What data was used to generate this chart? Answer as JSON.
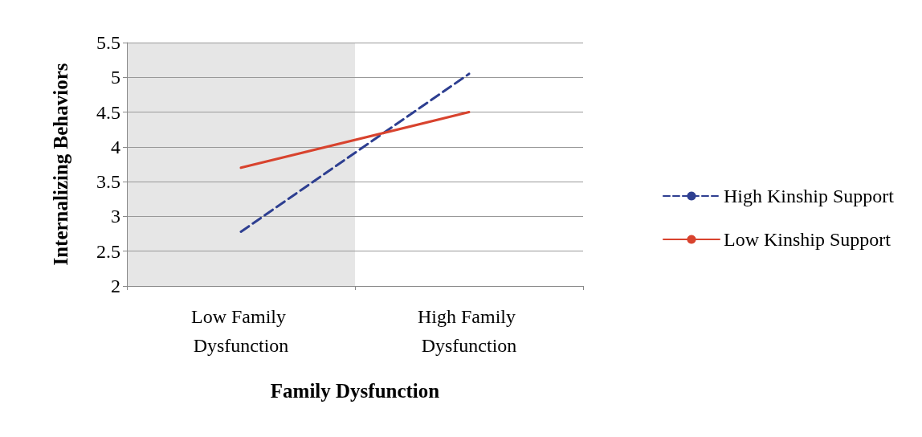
{
  "chart_data": {
    "type": "line",
    "xlabel": "Family Dysfunction",
    "ylabel": "Internalizing Behaviors",
    "categories": [
      "Low Family Dysfunction",
      "High Family Dysfunction"
    ],
    "series": [
      {
        "name": "High Kinship Support",
        "color": "#2e3f91",
        "values": [
          2.78,
          5.05
        ],
        "line_style": "dashed"
      },
      {
        "name": "Low Kinship Support",
        "color": "#d8432e",
        "values": [
          3.7,
          4.5
        ],
        "line_style": "solid"
      }
    ],
    "bands": [
      {
        "axis": "x",
        "from": "Low Family Dysfunction",
        "to": "Low Family Dysfunction",
        "color": "#e6e6e6"
      }
    ],
    "ylim": [
      2,
      5.5
    ],
    "yticks": [
      2,
      2.5,
      3,
      3.5,
      4,
      4.5,
      5,
      5.5
    ],
    "grid": "y",
    "legend": "right",
    "marker": "none"
  }
}
